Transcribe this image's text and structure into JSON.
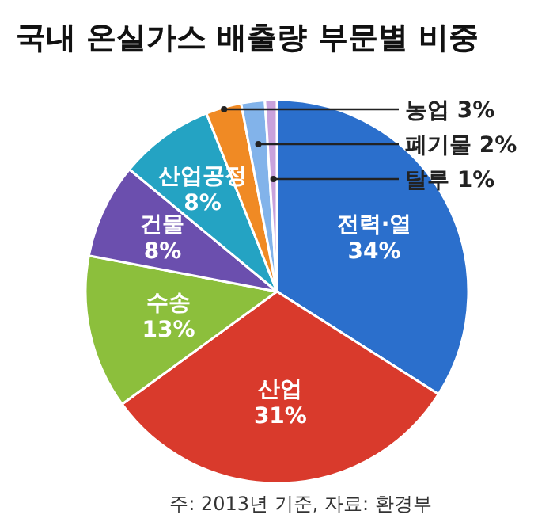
{
  "chart_data": {
    "type": "pie",
    "title": "국내 온실가스 배출량 부문별 비중",
    "categories": [
      "전력·열",
      "산업",
      "수송",
      "건물",
      "산업공정",
      "농업",
      "폐기물",
      "탈루"
    ],
    "values": [
      34,
      31,
      13,
      8,
      8,
      3,
      2,
      1
    ],
    "colors": [
      "#2b6fcc",
      "#d93a2c",
      "#8cbf3c",
      "#6b4fae",
      "#24a3c3",
      "#f08a24",
      "#82b3ea",
      "#c8a2dc"
    ],
    "value_labels": [
      "34%",
      "31%",
      "13%",
      "8%",
      "8%",
      "3%",
      "2%",
      "1%"
    ],
    "annotations": [
      "주: 2013년 기준, 자료: 환경부"
    ]
  }
}
